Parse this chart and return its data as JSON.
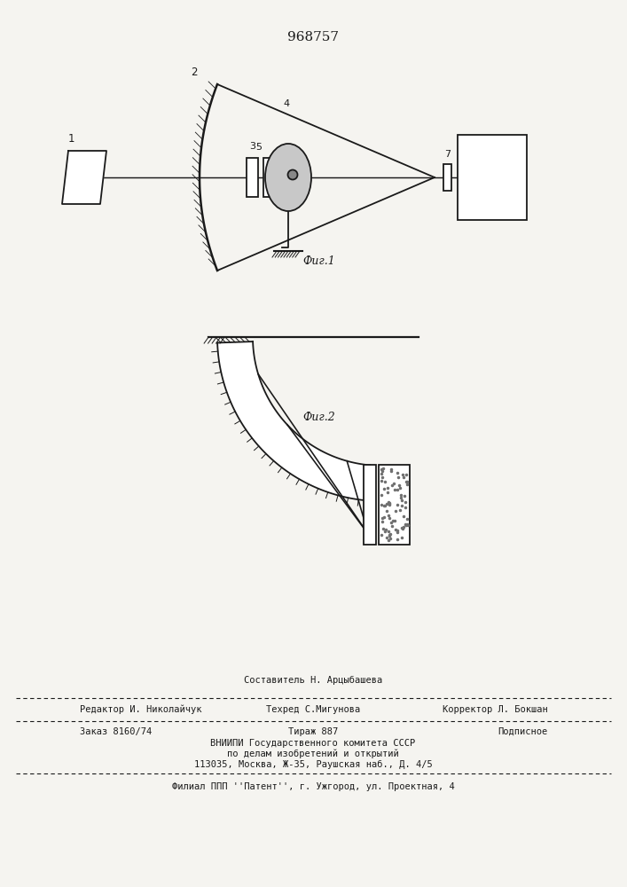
{
  "title": "968757",
  "fig1_label": "Фиг.1",
  "fig2_label": "Фиг.2",
  "bg_color": "#f5f4f0",
  "line_color": "#1a1a1a",
  "footer_line1": "Составитель Н. Арцыбашева",
  "footer_line2a": "Редактор И. Николайчук",
  "footer_line2b": "Техред С.Мигунова",
  "footer_line2c": "Корректор Л. Бокшан",
  "footer_line3a": "Заказ 8160/74",
  "footer_line3b": "Тираж 887",
  "footer_line3c": "Подписное",
  "footer_line4": "ВНИИПИ Государственного комитета СССР",
  "footer_line5": "по делам изобретений и открытий",
  "footer_line6": "113035, Москва, Ж-35, Раушская наб., Д. 4/5",
  "footer_line7": "Филиал ППП ''Патент'', г. Ужгород, ул. Проектная, 4"
}
